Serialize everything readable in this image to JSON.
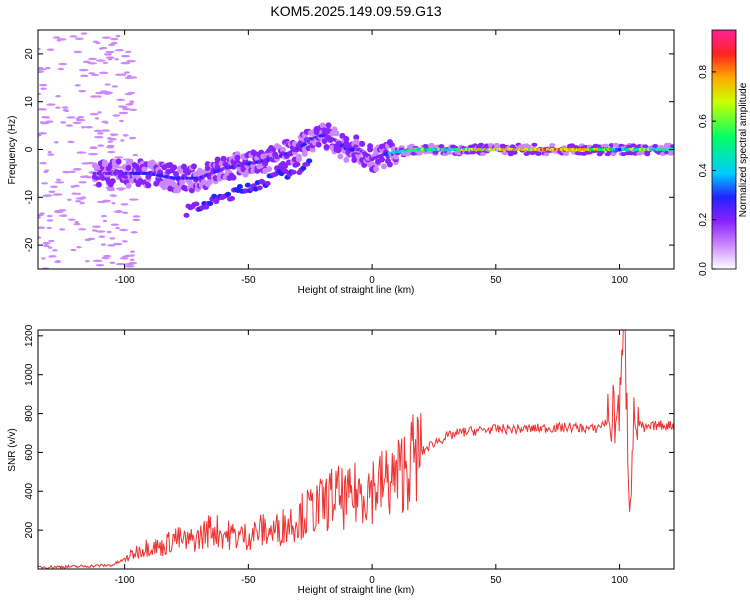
{
  "title": "KOM5.2025.149.09.59.G13",
  "colors": {
    "snr_line": "#ee3333",
    "colormap": [
      "#ffffff",
      "#cc88ff",
      "#8822ff",
      "#2222ff",
      "#00ccff",
      "#00ff66",
      "#ccff00",
      "#ffaa00",
      "#ff2222",
      "#ff2299"
    ]
  },
  "chart_data": [
    {
      "type": "heatmap",
      "panel": "top",
      "xlabel": "Height of straight line (km)",
      "ylabel": "Frequency (Hz)",
      "xlim": [
        -135,
        122
      ],
      "ylim": [
        -25,
        25
      ],
      "xticks": [
        -100,
        -50,
        0,
        50,
        100
      ],
      "yticks": [
        -20,
        -10,
        0,
        10,
        20
      ],
      "grid": false,
      "colorbar": {
        "label": "Normalized spectral amplitude",
        "range": [
          0,
          0.97
        ],
        "ticks": [
          "0.0",
          "0.2",
          "0.4",
          "0.6",
          "0.8"
        ]
      },
      "ridge": {
        "x": [
          -110,
          -100,
          -90,
          -80,
          -70,
          -60,
          -50,
          -40,
          -30,
          -25,
          -20,
          -15,
          -10,
          -5,
          0,
          5,
          10,
          20,
          30,
          40,
          50,
          60,
          70,
          80,
          90,
          100,
          110,
          120
        ],
        "y": [
          -5,
          -5,
          -5,
          -6,
          -6,
          -4,
          -3,
          -2,
          0,
          2,
          3,
          2,
          0,
          0,
          -2,
          -1,
          -0.5,
          0,
          0,
          0,
          0,
          0,
          0,
          0,
          0,
          0,
          0,
          0
        ],
        "amp": [
          0.25,
          0.3,
          0.35,
          0.35,
          0.3,
          0.3,
          0.3,
          0.25,
          0.3,
          0.35,
          0.3,
          0.2,
          0.3,
          0.3,
          0.2,
          0.35,
          0.45,
          0.55,
          0.6,
          0.65,
          0.7,
          0.75,
          0.85,
          0.9,
          0.7,
          0.5,
          0.6,
          0.5
        ]
      },
      "secondary_branch": {
        "x": [
          -75,
          -65,
          -55,
          -45,
          -35,
          -25
        ],
        "y": [
          -13,
          -11,
          -9,
          -7,
          -5,
          -3
        ]
      }
    },
    {
      "type": "line",
      "panel": "bottom",
      "xlabel": "Height of straight line (km)",
      "ylabel": "SNR (v/v)",
      "xlim": [
        -135,
        122
      ],
      "ylim": [
        0,
        1230
      ],
      "xticks": [
        -100,
        -50,
        0,
        50,
        100
      ],
      "yticks": [
        200,
        400,
        600,
        800,
        1000,
        1200
      ],
      "grid": false,
      "series": [
        {
          "x": [
            -135,
            -120,
            -105,
            -100,
            -95,
            -90,
            -85,
            -80,
            -75,
            -70,
            -65,
            -60,
            -55,
            -50,
            -45,
            -40,
            -35,
            -30,
            -25,
            -20,
            -15,
            -10,
            -5,
            0,
            5,
            10,
            15,
            20,
            25,
            30,
            35,
            40,
            50,
            60,
            70,
            80,
            90,
            95,
            100,
            102,
            104,
            106,
            110,
            115,
            122
          ],
          "y": [
            10,
            12,
            20,
            50,
            90,
            120,
            110,
            160,
            140,
            160,
            210,
            180,
            170,
            170,
            200,
            190,
            230,
            260,
            300,
            330,
            380,
            350,
            400,
            420,
            440,
            470,
            550,
            600,
            650,
            680,
            700,
            710,
            720,
            720,
            725,
            730,
            720,
            760,
            820,
            1230,
            380,
            770,
            720,
            740,
            740
          ]
        }
      ]
    }
  ]
}
